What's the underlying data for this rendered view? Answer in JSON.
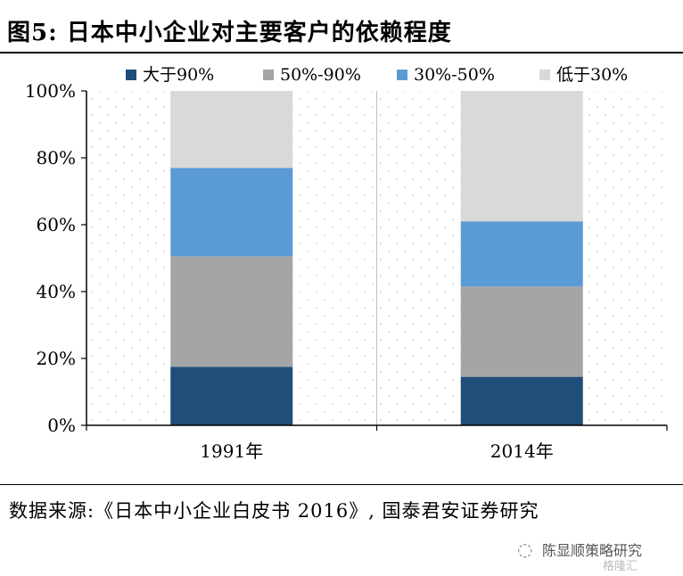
{
  "header": {
    "title": "图5:  日本中小企业对主要客户的依赖程度"
  },
  "chart_data": {
    "type": "bar",
    "stacked": true,
    "categories": [
      "1991年",
      "2014年"
    ],
    "series": [
      {
        "name": "大于90%",
        "color": "#1f4e79",
        "values": [
          17.5,
          14.5
        ]
      },
      {
        "name": "50%-90%",
        "color": "#a5a5a5",
        "values": [
          33,
          27
        ]
      },
      {
        "name": "30%-50%",
        "color": "#5b9bd5",
        "values": [
          26.5,
          19.5
        ]
      },
      {
        "name": "低于30%",
        "color": "#d9d9d9",
        "values": [
          23,
          39
        ]
      }
    ],
    "ylim": [
      0,
      100
    ],
    "yticks": [
      "0%",
      "20%",
      "40%",
      "60%",
      "80%",
      "100%"
    ],
    "legend": "top",
    "grid": false
  },
  "footer": {
    "source": "数据来源:《日本中小企业白皮书 2016》, 国泰君安证券研究",
    "watermark_icon": "wechat-icon",
    "watermark_text": "陈显顺策略研究",
    "watermark_sub": "格隆汇"
  }
}
